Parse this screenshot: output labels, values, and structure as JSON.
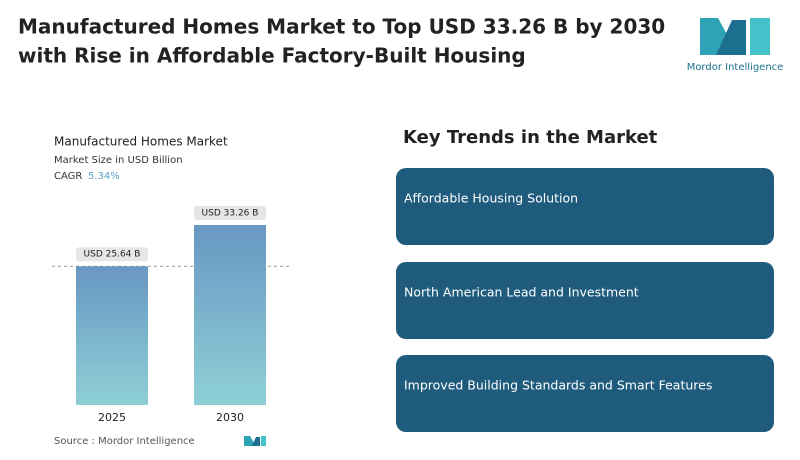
{
  "header": {
    "title_lines": [
      "Manufactured Homes Market to Top USD 33.26 B by 2030",
      "with Rise in Affordable Factory-Built Housing"
    ],
    "logo_text": "Mordor Intelligence"
  },
  "chart_data": {
    "type": "bar",
    "title": "Manufactured Homes Market",
    "subtitle": "Market Size in USD Billion",
    "cagr_label": "CAGR",
    "cagr_value": "5.34%",
    "categories": [
      "2025",
      "2030"
    ],
    "values": [
      25.64,
      33.26
    ],
    "value_labels": [
      "USD 25.64 B",
      "USD 33.26 B"
    ],
    "source": "Source : Mordor Intelligence"
  },
  "trends": {
    "title": "Key Trends in the Market",
    "items": [
      "Affordable Housing Solution",
      "North American Lead and Investment",
      "Improved Building Standards and Smart Features"
    ]
  }
}
